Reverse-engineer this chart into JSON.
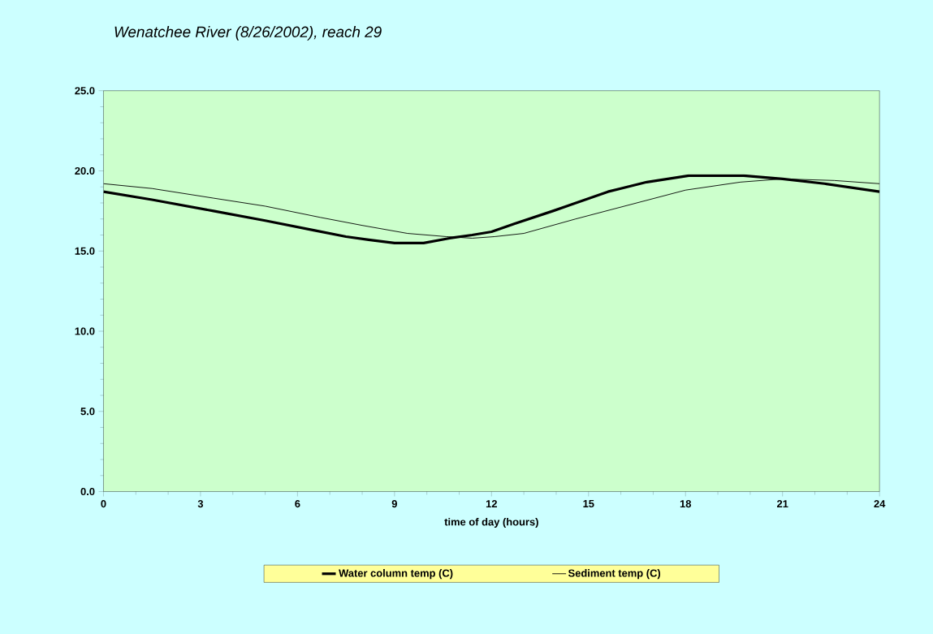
{
  "chart_data": {
    "type": "line",
    "title": "Wenatchee River (8/26/2002), reach 29",
    "xlabel": "time of day (hours)",
    "xlim": [
      0,
      24
    ],
    "xticks": [
      0,
      3,
      6,
      9,
      12,
      15,
      18,
      21,
      24
    ],
    "ylim": [
      0,
      25
    ],
    "yticks": [
      {
        "value": 0,
        "label": "0.0"
      },
      {
        "value": 5,
        "label": "5.0"
      },
      {
        "value": 10,
        "label": "10.0"
      },
      {
        "value": 15,
        "label": "15.0"
      },
      {
        "value": 20,
        "label": "20.0"
      },
      {
        "value": 25,
        "label": "25.0"
      }
    ],
    "grid": false,
    "legend": "bottom",
    "marker": "none",
    "line_style": "solid",
    "series": [
      {
        "name": "Water column temp (C)",
        "color": "#000000",
        "x": [
          0,
          1.5,
          3.4,
          5,
          6.5,
          7.5,
          8.2,
          9,
          9.9,
          10.7,
          11.4,
          12,
          12.7,
          13.9,
          15.6,
          16.8,
          18.1,
          19.8,
          21,
          22.3,
          24
        ],
        "values": [
          18.7,
          18.2,
          17.5,
          16.9,
          16.3,
          15.9,
          15.7,
          15.5,
          15.5,
          15.8,
          16.0,
          16.2,
          16.7,
          17.5,
          18.7,
          19.3,
          19.7,
          19.7,
          19.5,
          19.2,
          18.7
        ]
      },
      {
        "name": "Sediment temp (C)",
        "color": "#000000",
        "x": [
          0,
          1.5,
          3.4,
          5,
          6.7,
          8,
          9.4,
          10.6,
          11.4,
          12.1,
          13,
          14.6,
          16.3,
          18,
          19.7,
          21,
          22.6,
          24
        ],
        "values": [
          19.2,
          18.9,
          18.3,
          17.8,
          17.1,
          16.6,
          16.1,
          15.9,
          15.8,
          15.9,
          16.1,
          17.0,
          17.9,
          18.8,
          19.3,
          19.5,
          19.4,
          19.2
        ]
      }
    ]
  }
}
